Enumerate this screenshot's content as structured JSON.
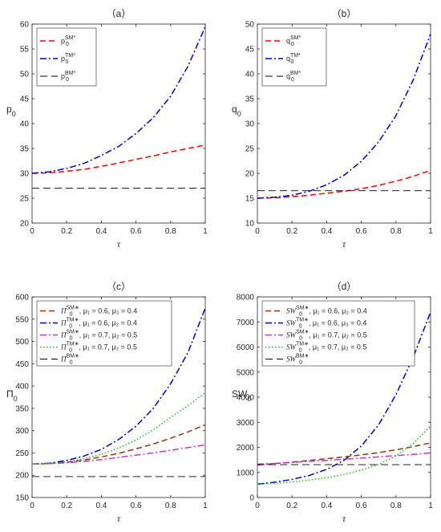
{
  "chart_data": [
    {
      "type": "line",
      "title": "（a）",
      "xlabel": "τ",
      "ylabel": "p",
      "ylabel_sub": "0",
      "xlim": [
        0,
        1
      ],
      "ylim": [
        20,
        60
      ],
      "xticks": [
        "0",
        "0.2",
        "0.4",
        "0.6",
        "0.8",
        "1"
      ],
      "yticks": [
        "20",
        "25",
        "30",
        "35",
        "40",
        "45",
        "50",
        "55",
        "60"
      ],
      "legend_position": "top-left",
      "x": [
        0,
        0.1,
        0.2,
        0.3,
        0.4,
        0.5,
        0.6,
        0.7,
        0.8,
        0.9,
        1.0
      ],
      "series": [
        {
          "name": "p",
          "sub": "0",
          "sup": "SM*",
          "color": "#ff0000",
          "dash": "dashed",
          "values": [
            30,
            30.1,
            30.4,
            30.8,
            31.4,
            32.1,
            32.8,
            33.5,
            34.3,
            35.0,
            35.7
          ]
        },
        {
          "name": "p",
          "sub": "0",
          "sup": "TM*",
          "color": "#0000cc",
          "dash": "dashdot",
          "values": [
            30,
            30.3,
            31.0,
            32.0,
            33.6,
            35.4,
            38.0,
            41.2,
            45.5,
            51.5,
            59.5
          ]
        },
        {
          "name": "p",
          "sub": "0",
          "sup": "BM*",
          "color": "#000000",
          "dash": "longdash-thin",
          "values": [
            27,
            27,
            27,
            27,
            27,
            27,
            27,
            27,
            27,
            27,
            27
          ]
        }
      ]
    },
    {
      "type": "line",
      "title": "（b）",
      "xlabel": "τ",
      "ylabel": "q",
      "ylabel_sub": "0",
      "xlim": [
        0,
        1
      ],
      "ylim": [
        10,
        50
      ],
      "xticks": [
        "0",
        "0.2",
        "0.4",
        "0.6",
        "0.8",
        "1"
      ],
      "yticks": [
        "10",
        "15",
        "20",
        "25",
        "30",
        "35",
        "40",
        "45",
        "50"
      ],
      "legend_position": "top-left",
      "x": [
        0,
        0.1,
        0.2,
        0.3,
        0.4,
        0.5,
        0.6,
        0.7,
        0.8,
        0.9,
        1.0
      ],
      "series": [
        {
          "name": "q",
          "sub": "0",
          "sup": "SM*",
          "color": "#ff0000",
          "dash": "dashed",
          "values": [
            15,
            15.1,
            15.3,
            15.6,
            16.0,
            16.4,
            16.9,
            17.6,
            18.4,
            19.4,
            20.6
          ]
        },
        {
          "name": "q",
          "sub": "0",
          "sup": "TM*",
          "color": "#0000cc",
          "dash": "dashdot",
          "values": [
            15,
            15.2,
            15.6,
            16.4,
            17.7,
            19.6,
            22.4,
            26.3,
            31.6,
            38.8,
            48.0
          ]
        },
        {
          "name": "q",
          "sub": "0",
          "sup": "BM*",
          "color": "#000000",
          "dash": "longdash-thin",
          "values": [
            16.5,
            16.5,
            16.5,
            16.5,
            16.5,
            16.5,
            16.5,
            16.5,
            16.5,
            16.5,
            16.5
          ]
        }
      ]
    },
    {
      "type": "line",
      "title": "（c）",
      "xlabel": "τ",
      "ylabel": "Π",
      "ylabel_sub": "0",
      "xlim": [
        0,
        1
      ],
      "ylim": [
        150,
        600
      ],
      "xticks": [
        "0",
        "0.2",
        "0.4",
        "0.6",
        "0.8",
        "1"
      ],
      "yticks": [
        "150",
        "200",
        "250",
        "300",
        "350",
        "400",
        "450",
        "500",
        "550",
        "600"
      ],
      "legend_position": "top-left",
      "x": [
        0,
        0.1,
        0.2,
        0.3,
        0.4,
        0.5,
        0.6,
        0.7,
        0.8,
        0.9,
        1.0
      ],
      "series": [
        {
          "name": "Π",
          "sub": "0",
          "sup": "SM∗",
          "params": ", μ₁ = 0.6, μ₂ = 0.4",
          "color": "#8b3a0f",
          "dash": "dashed",
          "values": [
            225,
            226,
            229,
            234,
            241,
            249,
            259,
            270,
            283,
            297,
            313
          ]
        },
        {
          "name": "Π",
          "sub": "0",
          "sup": "TM∗",
          "params": ", μ₁ = 0.6, μ₂ = 0.4",
          "color": "#0000cc",
          "dash": "dashdot",
          "values": [
            225,
            227,
            233,
            243,
            258,
            280,
            310,
            350,
            405,
            475,
            575
          ]
        },
        {
          "name": "Π",
          "sub": "0",
          "sup": "SM∗",
          "params": ", μ₁ = 0.7, μ₂ = 0.5",
          "color": "#cc33cc",
          "dash": "dashdot",
          "values": [
            225,
            226,
            228,
            231,
            235,
            240,
            245,
            250,
            256,
            262,
            268
          ]
        },
        {
          "name": "Π",
          "sub": "0",
          "sup": "TM∗",
          "params": ", μ₁ = 0.7, μ₂ = 0.5",
          "color": "#22bb22",
          "dash": "dotted",
          "values": [
            225,
            226,
            230,
            237,
            247,
            261,
            279,
            302,
            330,
            356,
            385
          ]
        },
        {
          "name": "Π",
          "sub": "0",
          "sup": "BM∗",
          "params": "",
          "color": "#000000",
          "dash": "longdash-thin",
          "values": [
            197,
            197,
            197,
            197,
            197,
            197,
            197,
            197,
            197,
            197,
            197
          ]
        }
      ]
    },
    {
      "type": "line",
      "title": "（d）",
      "xlabel": "τ",
      "ylabel": "SW",
      "ylabel_sub": "0",
      "xlim": [
        0,
        1
      ],
      "ylim": [
        0,
        8000
      ],
      "xticks": [
        "0",
        "0.2",
        "0.4",
        "0.6",
        "0.8",
        "1"
      ],
      "yticks": [
        "0",
        "1000",
        "2000",
        "3000",
        "4000",
        "5000",
        "6000",
        "7000",
        "8000"
      ],
      "legend_position": "top-left",
      "x": [
        0,
        0.1,
        0.2,
        0.3,
        0.4,
        0.5,
        0.6,
        0.7,
        0.8,
        0.9,
        1.0
      ],
      "series": [
        {
          "name": "SW",
          "sub": "0",
          "sup": "SM∗",
          "params": ", μ₁ = 0.6, μ₂ = 0.4",
          "color": "#8b3a0f",
          "dash": "dashed",
          "values": [
            1300,
            1350,
            1410,
            1480,
            1550,
            1620,
            1700,
            1790,
            1900,
            2030,
            2180
          ]
        },
        {
          "name": "SW",
          "sub": "0",
          "sup": "TM∗",
          "params": ", μ₁ = 0.6, μ₂ = 0.4",
          "color": "#0000cc",
          "dash": "dashdot",
          "values": [
            530,
            610,
            720,
            880,
            1120,
            1480,
            2050,
            2900,
            4100,
            5600,
            7400
          ]
        },
        {
          "name": "SW",
          "sub": "0",
          "sup": "SM∗",
          "params": ", μ₁ = 0.7, μ₂ = 0.5",
          "color": "#cc33cc",
          "dash": "dashdot",
          "values": [
            1330,
            1360,
            1400,
            1440,
            1480,
            1530,
            1570,
            1620,
            1670,
            1720,
            1780
          ]
        },
        {
          "name": "SW",
          "sub": "0",
          "sup": "TM∗",
          "params": ", μ₁ = 0.7, μ₂ = 0.5",
          "color": "#22bb22",
          "dash": "dotted",
          "values": [
            530,
            570,
            620,
            690,
            790,
            920,
            1090,
            1320,
            1660,
            2150,
            2850
          ]
        },
        {
          "name": "SW",
          "sub": "0",
          "sup": "BM∗",
          "params": "",
          "color": "#000000",
          "dash": "longdash-thin",
          "values": [
            1310,
            1310,
            1310,
            1310,
            1310,
            1310,
            1310,
            1310,
            1310,
            1310,
            1310
          ]
        }
      ]
    }
  ]
}
